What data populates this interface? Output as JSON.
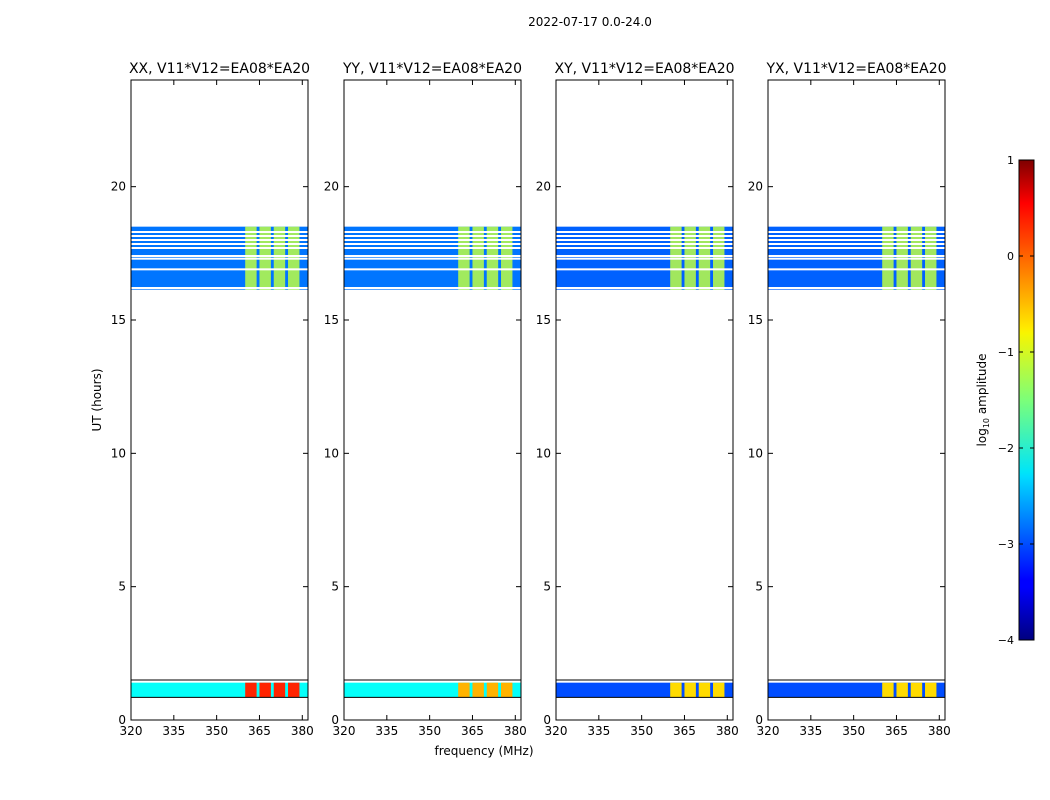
{
  "suptitle": "2022-07-17 0.0-24.0",
  "chart_data": {
    "type": "heatmap",
    "panels": [
      {
        "title": "XX, V11*V12=EA08*EA20",
        "pol": "XX"
      },
      {
        "title": "YY, V11*V12=EA08*EA20",
        "pol": "YY"
      },
      {
        "title": "XY, V11*V12=EA08*EA20",
        "pol": "XY"
      },
      {
        "title": "YX, V11*V12=EA08*EA20",
        "pol": "YX"
      }
    ],
    "xlabel": "frequency (MHz)",
    "ylabel": "UT (hours)",
    "xlim": [
      320,
      382
    ],
    "ylim": [
      0,
      24
    ],
    "xticks": [
      "320",
      "335",
      "350",
      "365",
      "380"
    ],
    "yticks": [
      "0",
      "5",
      "10",
      "15",
      "20"
    ],
    "colorbar": {
      "label_base": "log",
      "label_sub": "10",
      "label_rest": " amplitude",
      "range": [
        -4,
        1
      ],
      "ticks": [
        "1",
        "0",
        "−1",
        "−2",
        "−3",
        "−4"
      ],
      "colormap": "jet"
    },
    "data_blocks": {
      "late_session_hours": [
        16.1,
        18.5
      ],
      "early_session_hours": [
        0.85,
        1.4
      ],
      "bright_subbands_mhz": [
        [
          360,
          364
        ],
        [
          365,
          369
        ],
        [
          370,
          374
        ],
        [
          375,
          379
        ]
      ],
      "late_session_levels": {
        "XX": -2.8,
        "YY": -2.8,
        "XY": -2.9,
        "YX": -2.9
      },
      "late_session_subband_levels": {
        "XX": -1.2,
        "YY": -1.2,
        "XY": -1.2,
        "YX": -1.2
      },
      "early_session_levels": {
        "XX": -2.1,
        "YY": -2.1,
        "XY": -3.0,
        "YX": -3.0
      },
      "early_session_subband_levels": {
        "XX": 0.2,
        "YY": -0.5,
        "XY": -0.7,
        "YX": -0.7
      },
      "flagged_rows_hours": [
        16.1,
        16.2,
        16.9,
        17.3,
        17.4,
        17.7,
        17.85,
        18.0,
        18.15,
        18.3
      ]
    }
  }
}
